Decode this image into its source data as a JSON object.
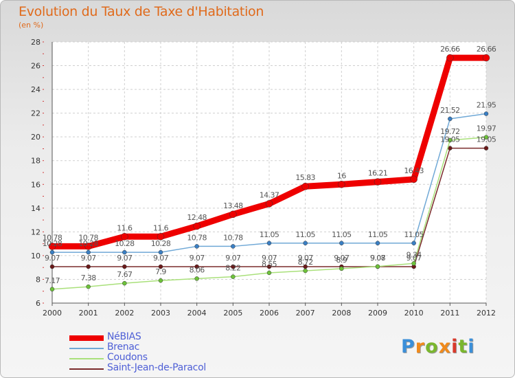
{
  "title": "Evolution du Taux de Taxe d'Habitation",
  "subtitle": "(en %)",
  "logo": {
    "letters": [
      "P",
      "r",
      "o",
      "x",
      "i",
      "t",
      "i"
    ],
    "colors": [
      "#3a8fd9",
      "#f08a1c",
      "#7ab62e",
      "#f08a1c",
      "#d93a2b",
      "#7ab62e",
      "#3a8fd9"
    ]
  },
  "chart_data": {
    "type": "line",
    "x": [
      "2000",
      "2001",
      "2002",
      "2003",
      "2004",
      "2005",
      "2006",
      "2007",
      "2008",
      "2009",
      "2010",
      "2011",
      "2012"
    ],
    "ylim": [
      6,
      28
    ],
    "yticks": [
      6,
      8,
      10,
      12,
      14,
      16,
      18,
      20,
      22,
      24,
      26,
      28
    ],
    "grid": true,
    "legend_position": "bottom-left",
    "series": [
      {
        "name": "NéBIAS",
        "color": "#ee0000",
        "point_color": "#ee0000",
        "width": 9,
        "values": [
          10.78,
          10.78,
          11.6,
          11.6,
          12.48,
          13.48,
          14.37,
          15.83,
          16,
          16.21,
          16.43,
          26.66,
          26.66
        ],
        "labels": [
          "10.78",
          "10.78",
          "11.6",
          "11.6",
          "12.48",
          "13.48",
          "14.37",
          "15.83",
          "16",
          "16.21",
          "16.43",
          "26.66",
          "26.66"
        ]
      },
      {
        "name": "Brenac",
        "color": "#6fa8d6",
        "point_color": "#3a7fc4",
        "width": 1.5,
        "values": [
          10.28,
          10.28,
          10.28,
          10.28,
          10.78,
          10.78,
          11.05,
          11.05,
          11.05,
          11.05,
          11.05,
          21.52,
          21.95
        ],
        "labels": [
          "10.28",
          "10.28",
          "10.28",
          "10.28",
          "10.78",
          "10.78",
          "11.05",
          "11.05",
          "11.05",
          "11.05",
          "11.05",
          "21.52",
          "21.95"
        ]
      },
      {
        "name": "Coudons",
        "color": "#a9e07a",
        "point_color": "#6dc23a",
        "width": 1.5,
        "values": [
          7.17,
          7.38,
          7.67,
          7.9,
          8.06,
          8.22,
          8.55,
          8.72,
          8.9,
          9.08,
          9.34,
          19.72,
          19.97
        ],
        "labels": [
          "7.17",
          "7.38",
          "7.67",
          "7.9",
          "8.06",
          "8.22",
          "8.55",
          "8.72",
          "8.9",
          "9.08",
          "9.34",
          "19.72",
          "19.97"
        ]
      },
      {
        "name": "Saint-Jean-de-Paracol",
        "color": "#7a2a2a",
        "point_color": "#6b1a1a",
        "width": 1.5,
        "values": [
          9.07,
          9.07,
          9.07,
          9.07,
          9.07,
          9.07,
          9.07,
          9.07,
          9.07,
          9.07,
          9.07,
          19.05,
          19.05
        ],
        "labels": [
          "9.07",
          "9.07",
          "9.07",
          "9.07",
          "9.07",
          "9.07",
          "9.07",
          "9.07",
          "9.07",
          "9.07",
          "9.07",
          "19.05",
          "19.05"
        ]
      }
    ]
  }
}
